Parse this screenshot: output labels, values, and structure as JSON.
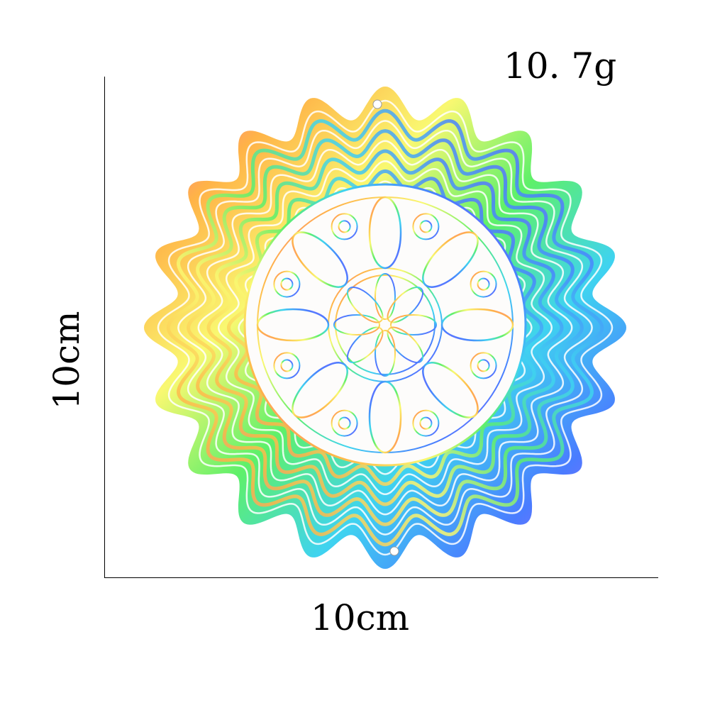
{
  "product": {
    "weight_label": "10. 7g",
    "width_label": "10cm",
    "height_label": "10cm",
    "shape": "wavy mandala wind spinner",
    "lobes": 20,
    "colors": [
      "#ff4fd8",
      "#ffb347",
      "#f9f871",
      "#5ef06a",
      "#3fd3f0",
      "#4a7cff",
      "#c45cff"
    ]
  }
}
